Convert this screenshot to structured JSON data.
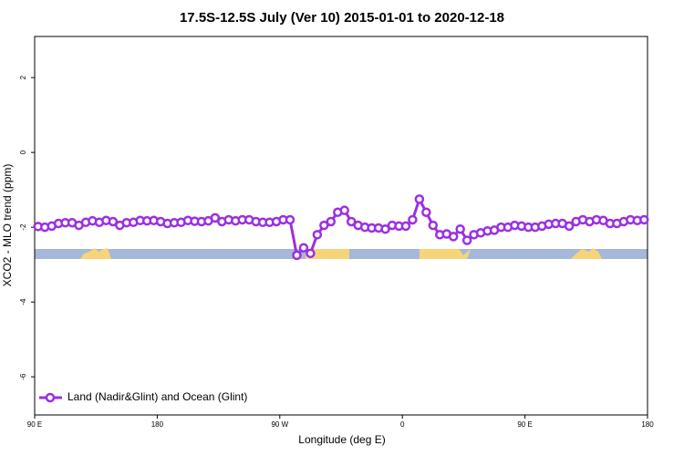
{
  "chart_data": {
    "type": "line",
    "title": "17.5S-12.5S July (Ver 10)   2015-01-01 to 2020-12-18",
    "x_label": "Longitude (deg E)",
    "y_label": "XCO2 - MLO trend (ppm)",
    "xlim": [
      90,
      540
    ],
    "ylim": [
      -7.02,
      3.1
    ],
    "xticks": [
      {
        "value": 90,
        "label": "90 E"
      },
      180,
      {
        "value": 270,
        "label": "90 W"
      },
      {
        "value": 360,
        "label": "0"
      },
      {
        "value": 450,
        "label": "90 E"
      },
      {
        "value": 540,
        "label": "180"
      }
    ],
    "yticks": [
      2,
      0,
      -2,
      -4,
      -6
    ],
    "legend": "lower left",
    "x": [
      92.5,
      97.5,
      102.5,
      107.5,
      112.5,
      117.5,
      122.5,
      127.5,
      132.5,
      137.5,
      142.5,
      147.5,
      152.5,
      157.5,
      162.5,
      167.5,
      172.5,
      177.5,
      182.5,
      187.5,
      192.5,
      197.5,
      202.5,
      207.5,
      212.5,
      217.5,
      222.5,
      227.5,
      232.5,
      237.5,
      242.5,
      247.5,
      252.5,
      257.5,
      262.5,
      267.5,
      272.5,
      277.5,
      282.5,
      287.5,
      292.5,
      297.5,
      302.5,
      307.5,
      312.5,
      317.5,
      322.5,
      327.5,
      332.5,
      337.5,
      342.5,
      347.5,
      352.5,
      357.5,
      362.5,
      367.5,
      372.5,
      377.5,
      382.5,
      387.5,
      392.5,
      397.5,
      402.5,
      407.5,
      412.5,
      417.5,
      422.5,
      427.5,
      432.5,
      437.5,
      442.5,
      447.5,
      452.5,
      457.5,
      462.5,
      467.5,
      472.5,
      477.5,
      482.5,
      487.5,
      492.5,
      497.5,
      502.5,
      507.5,
      512.5,
      517.5,
      522.5,
      527.5,
      532.5,
      537.5
    ],
    "series": [
      {
        "name": "Land (Nadir&Glint) and Ocean (Glint)",
        "color": "#9b30e0",
        "values": [
          -1.98,
          -2.0,
          -1.97,
          -1.9,
          -1.88,
          -1.88,
          -1.95,
          -1.87,
          -1.83,
          -1.87,
          -1.82,
          -1.85,
          -1.95,
          -1.88,
          -1.87,
          -1.82,
          -1.83,
          -1.82,
          -1.85,
          -1.9,
          -1.88,
          -1.87,
          -1.82,
          -1.84,
          -1.85,
          -1.83,
          -1.75,
          -1.85,
          -1.8,
          -1.83,
          -1.8,
          -1.8,
          -1.85,
          -1.87,
          -1.87,
          -1.85,
          -1.8,
          -1.8,
          -2.75,
          -2.55,
          -2.7,
          -2.2,
          -1.95,
          -1.85,
          -1.6,
          -1.55,
          -1.85,
          -1.95,
          -2.0,
          -2.02,
          -2.02,
          -2.05,
          -1.95,
          -1.97,
          -1.97,
          -1.8,
          -1.25,
          -1.6,
          -1.95,
          -2.2,
          -2.18,
          -2.25,
          -2.05,
          -2.35,
          -2.2,
          -2.15,
          -2.1,
          -2.08,
          -2.0,
          -2.0,
          -1.95,
          -1.97,
          -2.0,
          -2.0,
          -1.97,
          -1.92,
          -1.9,
          -1.9,
          -1.97,
          -1.85,
          -1.8,
          -1.85,
          -1.8,
          -1.82,
          -1.9,
          -1.9,
          -1.85,
          -1.8,
          -1.82,
          -1.8
        ]
      }
    ]
  }
}
